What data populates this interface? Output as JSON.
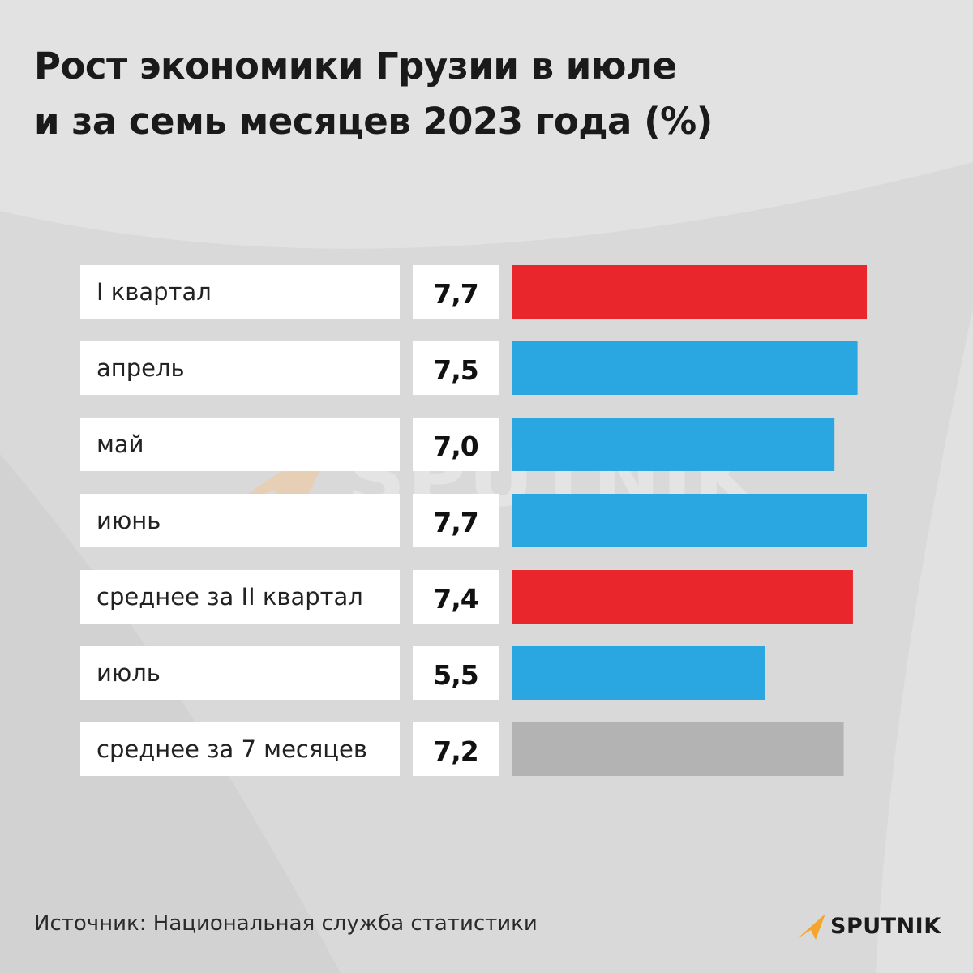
{
  "title": {
    "line1": "Рост экономики Грузии в июле",
    "line2": "и за семь месяцев 2023 года (%)"
  },
  "colors": {
    "quarter": "#e8262b",
    "month": "#2aa7e0",
    "seven_months": "#b3b3b3",
    "label_bg": "#ffffff",
    "background": "#d9d9d9",
    "brand_accent": "#f5a52b"
  },
  "chart_data": {
    "type": "bar",
    "orientation": "horizontal",
    "categories": [
      "I квартал",
      "апрель",
      "май",
      "июнь",
      "среднее за II квартал",
      "июль",
      "среднее за 7 месяцев"
    ],
    "values": [
      7.7,
      7.5,
      7.0,
      7.7,
      7.4,
      5.5,
      7.2
    ],
    "value_labels": [
      "7,7",
      "7,5",
      "7,0",
      "7,7",
      "7,4",
      "5,5",
      "7,2"
    ],
    "bar_colors": [
      "quarter",
      "month",
      "month",
      "month",
      "quarter",
      "month",
      "seven_months"
    ],
    "title": "Рост экономики Грузии в июле и за семь месяцев 2023 года (%)",
    "xlabel": "",
    "ylabel": "",
    "xlim": [
      0,
      7.7
    ],
    "grid": false,
    "legend": "none"
  },
  "source": "Источник: Национальная служба статистики",
  "brand": {
    "logo_text": "SPUTNIK",
    "icon": "sputnik-arrow-icon"
  },
  "watermark": {
    "text": "SPUTNIK"
  }
}
